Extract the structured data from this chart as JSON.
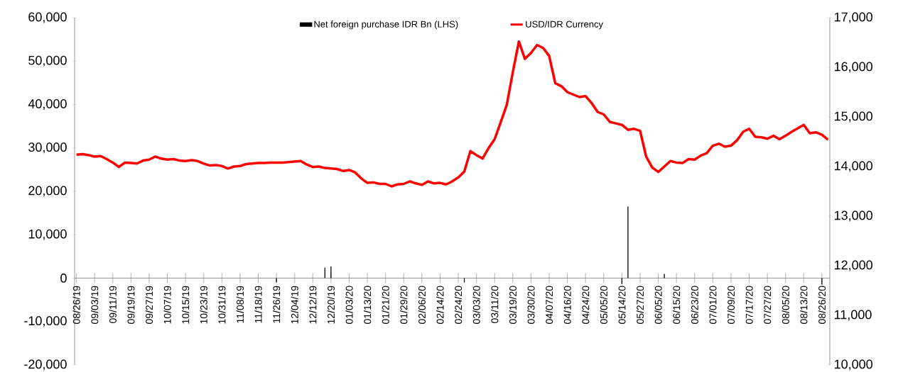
{
  "chart_data": {
    "type": "bar",
    "categories": [
      "08/26/19",
      null,
      null,
      "09/03/19",
      null,
      null,
      "09/11/19",
      null,
      null,
      "09/19/19",
      null,
      null,
      "09/27/19",
      null,
      null,
      "10/07/19",
      null,
      null,
      "10/15/19",
      null,
      null,
      "10/23/19",
      null,
      null,
      "10/31/19",
      null,
      null,
      "11/08/19",
      null,
      null,
      "11/18/19",
      null,
      null,
      "11/26/19",
      null,
      null,
      "12/04/19",
      null,
      null,
      "12/12/19",
      null,
      null,
      "12/20/19",
      null,
      null,
      "01/03/20",
      null,
      null,
      "01/13/20",
      null,
      null,
      "01/21/20",
      null,
      null,
      "01/29/20",
      null,
      null,
      "02/06/20",
      null,
      null,
      "02/14/20",
      null,
      null,
      "02/24/20",
      null,
      null,
      "03/03/20",
      null,
      null,
      "03/11/20",
      null,
      null,
      "03/19/20",
      null,
      null,
      "03/30/20",
      null,
      null,
      "04/07/20",
      null,
      null,
      "04/16/20",
      null,
      null,
      "04/24/20",
      null,
      null,
      "05/05/20",
      null,
      null,
      "05/14/20",
      null,
      null,
      "05/27/20",
      null,
      null,
      "06/05/20",
      null,
      null,
      "06/15/20",
      null,
      null,
      "06/23/20",
      null,
      null,
      "07/01/20",
      null,
      null,
      "07/09/20",
      null,
      null,
      "07/17/20",
      null,
      null,
      "07/27/20",
      null,
      null,
      "08/05/20",
      null,
      null,
      "08/13/20",
      null,
      null,
      "08/26/20",
      null
    ],
    "series": [
      {
        "name": "Net foreign purchase IDR Bn (LHS)",
        "color": "#000000",
        "values": [
          0,
          0,
          0,
          0,
          0,
          0,
          0,
          0,
          0,
          0,
          0,
          0,
          0,
          0,
          0,
          0,
          0,
          0,
          0,
          0,
          0,
          0,
          0,
          0,
          0,
          0,
          0,
          0,
          0,
          0,
          0,
          0,
          0,
          -1000,
          0,
          0,
          0,
          0,
          0,
          0,
          0,
          2400,
          2700,
          0,
          0,
          0,
          0,
          0,
          0,
          0,
          0,
          0,
          0,
          0,
          0,
          0,
          0,
          0,
          0,
          0,
          0,
          0,
          0,
          0,
          -1000,
          0,
          0,
          0,
          0,
          0,
          0,
          0,
          0,
          0,
          0,
          0,
          0,
          0,
          0,
          0,
          0,
          0,
          0,
          0,
          0,
          0,
          0,
          0,
          0,
          0,
          -1400,
          16500,
          0,
          0,
          0,
          0,
          0,
          1000,
          0,
          0,
          0,
          0,
          0,
          0,
          0,
          0,
          0,
          0,
          0,
          0,
          0,
          0,
          0,
          0,
          0,
          0,
          0,
          0,
          0,
          0,
          0,
          0,
          0,
          -1500,
          0
        ]
      },
      {
        "name": "USD/IDR Currency",
        "type": "line",
        "axis": "y2",
        "color": "#ff0000",
        "values": [
          14240,
          14250,
          14230,
          14200,
          14210,
          14150,
          14080,
          13990,
          14080,
          14070,
          14060,
          14120,
          14140,
          14200,
          14160,
          14140,
          14150,
          14120,
          14110,
          14130,
          14110,
          14060,
          14020,
          14030,
          14010,
          13960,
          14000,
          14010,
          14050,
          14060,
          14070,
          14070,
          14080,
          14080,
          14080,
          14090,
          14100,
          14110,
          14040,
          13990,
          14000,
          13970,
          13960,
          13950,
          13910,
          13930,
          13880,
          13760,
          13670,
          13680,
          13650,
          13650,
          13600,
          13640,
          13650,
          13700,
          13660,
          13630,
          13700,
          13660,
          13670,
          13640,
          13700,
          13780,
          13900,
          14310,
          14230,
          14160,
          14370,
          14550,
          14890,
          15240,
          15900,
          16520,
          16170,
          16290,
          16450,
          16390,
          16230,
          15680,
          15620,
          15500,
          15450,
          15400,
          15420,
          15280,
          15100,
          15050,
          14900,
          14870,
          14840,
          14740,
          14760,
          14720,
          14200,
          13980,
          13890,
          14000,
          14110,
          14080,
          14070,
          14150,
          14140,
          14220,
          14270,
          14420,
          14460,
          14400,
          14420,
          14530,
          14700,
          14760,
          14600,
          14590,
          14560,
          14620,
          14550,
          14620,
          14700,
          14770,
          14840,
          14670,
          14690,
          14640,
          14540
        ]
      }
    ],
    "ylim": [
      -20000,
      60000
    ],
    "yticks": [
      {
        "value": -20000,
        "label": "-20,000"
      },
      {
        "value": -10000,
        "label": "-10,000"
      },
      0,
      {
        "value": 10000,
        "label": "10,000"
      },
      {
        "value": 20000,
        "label": "20,000"
      },
      {
        "value": 30000,
        "label": "30,000"
      },
      {
        "value": 40000,
        "label": "40,000"
      },
      {
        "value": 50000,
        "label": "50,000"
      },
      {
        "value": 60000,
        "label": "60,000"
      }
    ],
    "y2lim": [
      10000,
      17000
    ],
    "y2ticks": [
      {
        "value": 10000,
        "label": "10,000"
      },
      {
        "value": 11000,
        "label": "11,000"
      },
      {
        "value": 12000,
        "label": "12,000"
      },
      {
        "value": 13000,
        "label": "13,000"
      },
      {
        "value": 14000,
        "label": "14,000"
      },
      {
        "value": 15000,
        "label": "15,000"
      },
      {
        "value": 16000,
        "label": "16,000"
      },
      {
        "value": 17000,
        "label": "17,000"
      }
    ],
    "legend": "top"
  }
}
